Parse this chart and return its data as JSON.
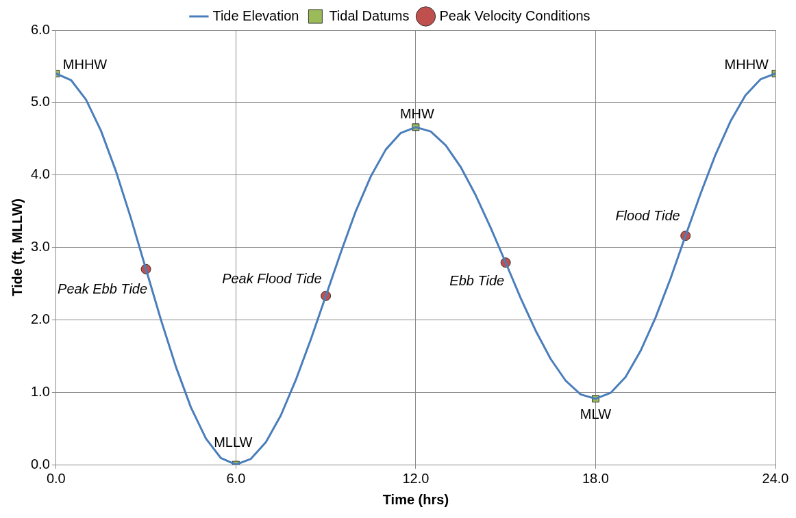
{
  "chart_data": {
    "type": "line",
    "xlabel": "Time (hrs)",
    "ylabel": "Tide (ft, MLLW)",
    "xlim": [
      0,
      24
    ],
    "ylim": [
      0,
      6
    ],
    "xticks": [
      {
        "value": 0,
        "label": "0.0"
      },
      {
        "value": 6,
        "label": "6.0"
      },
      {
        "value": 12,
        "label": "12.0"
      },
      {
        "value": 18,
        "label": "18.0"
      },
      {
        "value": 24,
        "label": "24.0"
      }
    ],
    "yticks": [
      {
        "value": 0,
        "label": "0.0"
      },
      {
        "value": 1,
        "label": "1.0"
      },
      {
        "value": 2,
        "label": "2.0"
      },
      {
        "value": 3,
        "label": "3.0"
      },
      {
        "value": 4,
        "label": "4.0"
      },
      {
        "value": 5,
        "label": "5.0"
      },
      {
        "value": 6,
        "label": "6.0"
      }
    ],
    "grid": true,
    "legend": "top",
    "line_style": "solid",
    "series": [
      {
        "name": "Tide Elevation",
        "color": "#4a7ebb",
        "marker": "none",
        "x": [
          0,
          0.5,
          1,
          1.5,
          2,
          2.5,
          3,
          3.5,
          4,
          4.5,
          5,
          5.5,
          6,
          6.5,
          7,
          7.5,
          8,
          8.5,
          9,
          9.5,
          10,
          10.5,
          11,
          11.5,
          12,
          12.5,
          13,
          13.5,
          14,
          14.5,
          15,
          15.5,
          16,
          16.5,
          17,
          17.5,
          18,
          18.5,
          19,
          19.5,
          20,
          20.5,
          21,
          21.5,
          22,
          22.5,
          23,
          23.5,
          24
        ],
        "values": [
          5.4,
          5.31,
          5.04,
          4.61,
          4.05,
          3.4,
          2.7,
          2.0,
          1.35,
          0.79,
          0.36,
          0.09,
          0,
          0.08,
          0.31,
          0.68,
          1.17,
          1.73,
          2.33,
          2.93,
          3.5,
          3.98,
          4.35,
          4.58,
          4.66,
          4.6,
          4.41,
          4.11,
          3.72,
          3.27,
          2.79,
          2.3,
          1.85,
          1.46,
          1.16,
          0.97,
          0.91,
          0.99,
          1.21,
          1.57,
          2.03,
          2.57,
          3.16,
          3.74,
          4.28,
          4.74,
          5.1,
          5.32,
          5.4
        ]
      },
      {
        "name": "Tidal Datums",
        "type": "scatter",
        "color": "#9bbb59",
        "marker": "square",
        "x": [
          0,
          6,
          12,
          18,
          24
        ],
        "values": [
          5.4,
          0,
          4.66,
          0.91,
          5.4
        ]
      },
      {
        "name": "Peak Velocity Conditions",
        "type": "scatter",
        "color": "#c0504d",
        "marker": "circle",
        "x": [
          3,
          9,
          15,
          21
        ],
        "values": [
          2.7,
          2.33,
          2.79,
          3.16
        ]
      }
    ],
    "annotations": [
      {
        "text": "MHHW",
        "x": 0,
        "y": 5.4
      },
      {
        "text": "MLLW",
        "x": 6,
        "y": 0
      },
      {
        "text": "MHW",
        "x": 12,
        "y": 4.66
      },
      {
        "text": "MLW",
        "x": 18,
        "y": 0.91
      },
      {
        "text": "MHHW",
        "x": 24,
        "y": 5.4
      },
      {
        "text": "Peak Ebb Tide",
        "x": 3,
        "y": 2.7
      },
      {
        "text": "Peak Flood Tide",
        "x": 9,
        "y": 2.33
      },
      {
        "text": "Ebb Tide",
        "x": 15,
        "y": 2.79
      },
      {
        "text": "Flood Tide",
        "x": 21,
        "y": 3.16
      }
    ]
  }
}
